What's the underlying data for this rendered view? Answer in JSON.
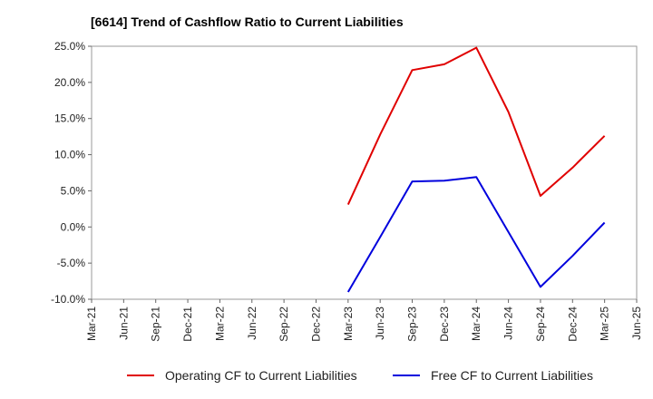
{
  "chart_data": {
    "type": "line",
    "title": "[6614]  Trend of Cashflow Ratio to Current Liabilities",
    "xlabel": "",
    "ylabel": "",
    "x": [
      "Mar-21",
      "Jun-21",
      "Sep-21",
      "Dec-21",
      "Mar-22",
      "Jun-22",
      "Sep-22",
      "Dec-22",
      "Mar-23",
      "Jun-23",
      "Sep-23",
      "Dec-23",
      "Mar-24",
      "Jun-24",
      "Sep-24",
      "Dec-24",
      "Mar-25",
      "Jun-25"
    ],
    "ylim": [
      -10,
      25
    ],
    "yticks": [
      25,
      20,
      15,
      10,
      5,
      0,
      -5,
      -10
    ],
    "ytick_labels": [
      "25.0%",
      "20.0%",
      "15.0%",
      "10.0%",
      "5.0%",
      "0.0%",
      "-5.0%",
      "-10.0%"
    ],
    "grid": true,
    "legend_position": "bottom",
    "series": [
      {
        "name": "Operating CF to Current Liabilities",
        "color": "#e00000",
        "values": [
          null,
          null,
          null,
          null,
          null,
          null,
          null,
          null,
          3.1,
          12.8,
          21.7,
          22.5,
          24.8,
          15.9,
          4.3,
          8.2,
          12.6,
          null
        ]
      },
      {
        "name": "Free CF to Current Liabilities",
        "color": "#0000dd",
        "values": [
          null,
          null,
          null,
          null,
          null,
          null,
          null,
          null,
          -9.0,
          -1.4,
          6.3,
          6.4,
          6.9,
          -0.7,
          -8.3,
          -4.0,
          0.6,
          null
        ]
      }
    ]
  }
}
